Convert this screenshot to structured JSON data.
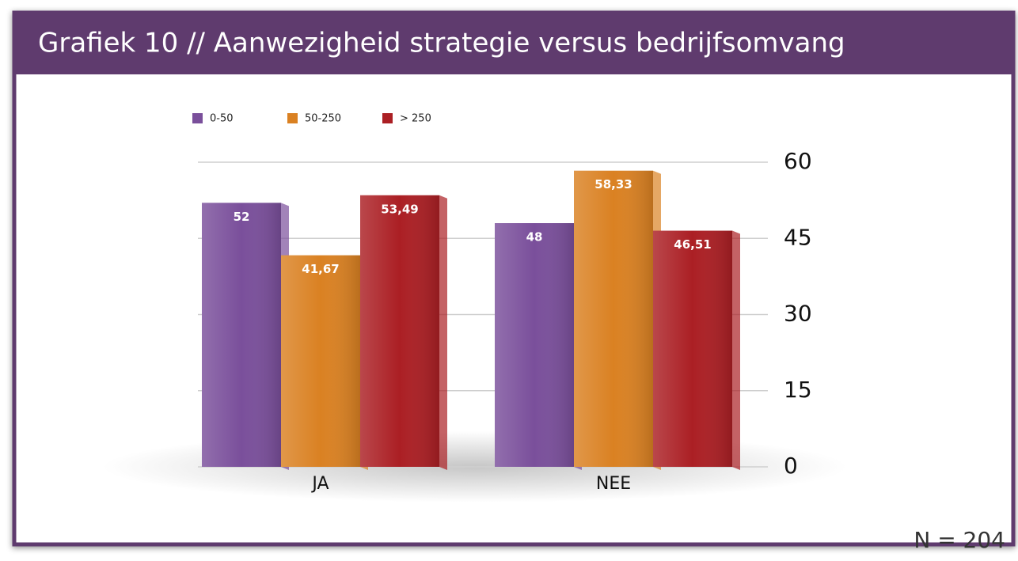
{
  "chart_data": {
    "type": "bar",
    "title": "Grafiek 10 // Aanwezigheid strategie versus bedrijfsomvang",
    "note": "N = 204",
    "categories": [
      "JA",
      "NEE"
    ],
    "series": [
      {
        "name": "0-50",
        "color": "#7a4f9b",
        "values": [
          52,
          48
        ],
        "value_labels": [
          "52",
          "48"
        ]
      },
      {
        "name": "50-250",
        "color": "#da8122",
        "values": [
          41.67,
          58.33
        ],
        "value_labels": [
          "41,67",
          "58,33"
        ]
      },
      {
        "name": "> 250",
        "color": "#ab1f24",
        "values": [
          53.49,
          46.51
        ],
        "value_labels": [
          "53,49",
          "46,51"
        ]
      }
    ],
    "ylim": [
      0,
      60
    ],
    "yticks": [
      0,
      15,
      30,
      45,
      60
    ],
    "grid": true,
    "legend": "top-left",
    "y_axis_side": "right"
  }
}
